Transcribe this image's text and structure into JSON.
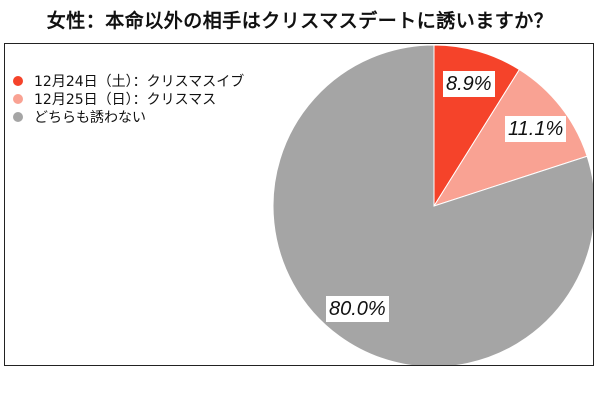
{
  "title": "女性：本命以外の相手はクリスマスデートに誘いますか？",
  "legend": [
    {
      "label": "12月24日（土）：クリスマスイブ",
      "color": "#f5432a"
    },
    {
      "label": "12月25日（日）：クリスマス",
      "color": "#f9a293"
    },
    {
      "label": "どちらも誘わない",
      "color": "#a5a5a5"
    }
  ],
  "labels": {
    "s1": "8.9%",
    "s2": "11.1%",
    "s3": "80.0%"
  },
  "chart_data": {
    "type": "pie",
    "title": "女性：本命以外の相手はクリスマスデートに誘いますか？",
    "categories": [
      "12月24日（土）：クリスマスイブ",
      "12月25日（日）：クリスマス",
      "どちらも誘わない"
    ],
    "values": [
      8.9,
      11.1,
      80.0
    ],
    "colors": [
      "#f5432a",
      "#f9a293",
      "#a5a5a5"
    ],
    "unit": "%",
    "start_angle": "12 o'clock, clockwise",
    "legend_position": "top-left"
  }
}
